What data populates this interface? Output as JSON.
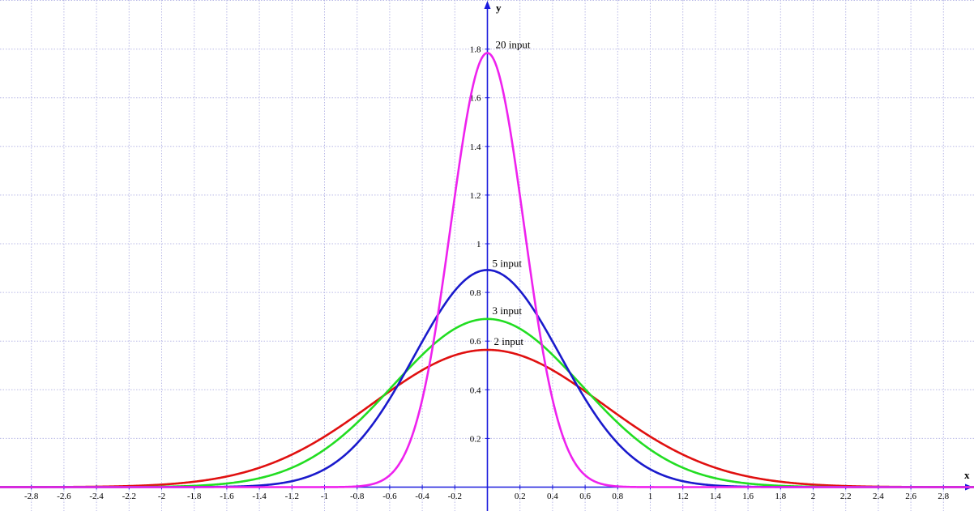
{
  "chart_data": {
    "type": "line",
    "xlabel": "x",
    "ylabel": "y",
    "xlim": [
      -3.0,
      3.0
    ],
    "ylim": [
      -0.1,
      2.0
    ],
    "grid": true,
    "x_ticks": [
      "-2.8",
      "-2.6",
      "-2.4",
      "-2.2",
      "-2",
      "-1.8",
      "-1.6",
      "-1.4",
      "-1.2",
      "-1",
      "-0.8",
      "-0.6",
      "-0.4",
      "-0.2",
      "0.2",
      "0.4",
      "0.6",
      "0.8",
      "1",
      "1.2",
      "1.4",
      "1.6",
      "1.8",
      "2",
      "2.2",
      "2.4",
      "2.6",
      "2.8"
    ],
    "y_ticks": [
      "0.2",
      "0.4",
      "0.6",
      "0.8",
      "1",
      "1.2",
      "1.4",
      "1.6",
      "1.8"
    ],
    "series": [
      {
        "label": "2 input",
        "color": "#e01010",
        "peak": 0.564,
        "x": [
          -2.8,
          -2.4,
          -2,
          -1.6,
          -1.2,
          -0.8,
          -0.6,
          -0.4,
          -0.2,
          0,
          0.2,
          0.4,
          0.6,
          0.8,
          1.2,
          1.6,
          2,
          2.4,
          2.8
        ],
        "y": [
          0.0002,
          0.0018,
          0.0103,
          0.0439,
          0.1339,
          0.2969,
          0.3943,
          0.4803,
          0.5422,
          0.5642,
          0.5422,
          0.4803,
          0.3943,
          0.2969,
          0.1339,
          0.0439,
          0.0103,
          0.0018,
          0.0002
        ]
      },
      {
        "label": "3 input",
        "color": "#22dd22",
        "peak": 0.691,
        "x": [
          -2.8,
          -2.4,
          -2,
          -1.6,
          -1.2,
          -0.8,
          -0.6,
          -0.4,
          -0.2,
          0,
          0.2,
          0.4,
          0.6,
          0.8,
          1.2,
          1.6,
          2,
          2.4,
          2.8
        ],
        "y": [
          0.0,
          0.0001,
          0.0017,
          0.0149,
          0.0796,
          0.2622,
          0.3951,
          0.5268,
          0.6353,
          0.691,
          0.6353,
          0.5268,
          0.3951,
          0.2622,
          0.0796,
          0.0149,
          0.0017,
          0.0001,
          0.0
        ]
      },
      {
        "label": "5 input",
        "color": "#1a1acc",
        "peak": 0.892,
        "x": [
          -2.8,
          -2.4,
          -2,
          -1.6,
          -1.2,
          -0.8,
          -0.6,
          -0.4,
          -0.2,
          0,
          0.2,
          0.4,
          0.6,
          0.8,
          1.2,
          1.6,
          2,
          2.4,
          2.8
        ],
        "y": [
          0.0,
          0.0,
          0.0,
          0.0016,
          0.0238,
          0.181,
          0.3664,
          0.597,
          0.8071,
          0.8921,
          0.8071,
          0.597,
          0.3664,
          0.181,
          0.0238,
          0.0016,
          0.0,
          0.0,
          0.0
        ]
      },
      {
        "label": "20 input",
        "color": "#ee22ee",
        "peak": 1.784,
        "x": [
          -2.8,
          -2.4,
          -2,
          -1.6,
          -1.2,
          -0.8,
          -0.6,
          -0.4,
          -0.2,
          0,
          0.2,
          0.4,
          0.6,
          0.8,
          1.2,
          1.6,
          2,
          2.4,
          2.8
        ],
        "y": [
          0.0,
          0.0,
          0.0,
          0.0,
          0.0,
          0.0003,
          0.0176,
          0.2299,
          1.0823,
          1.7841,
          1.0823,
          0.2299,
          0.0176,
          0.0003,
          0.0,
          0.0,
          0.0,
          0.0,
          0.0
        ]
      }
    ]
  }
}
